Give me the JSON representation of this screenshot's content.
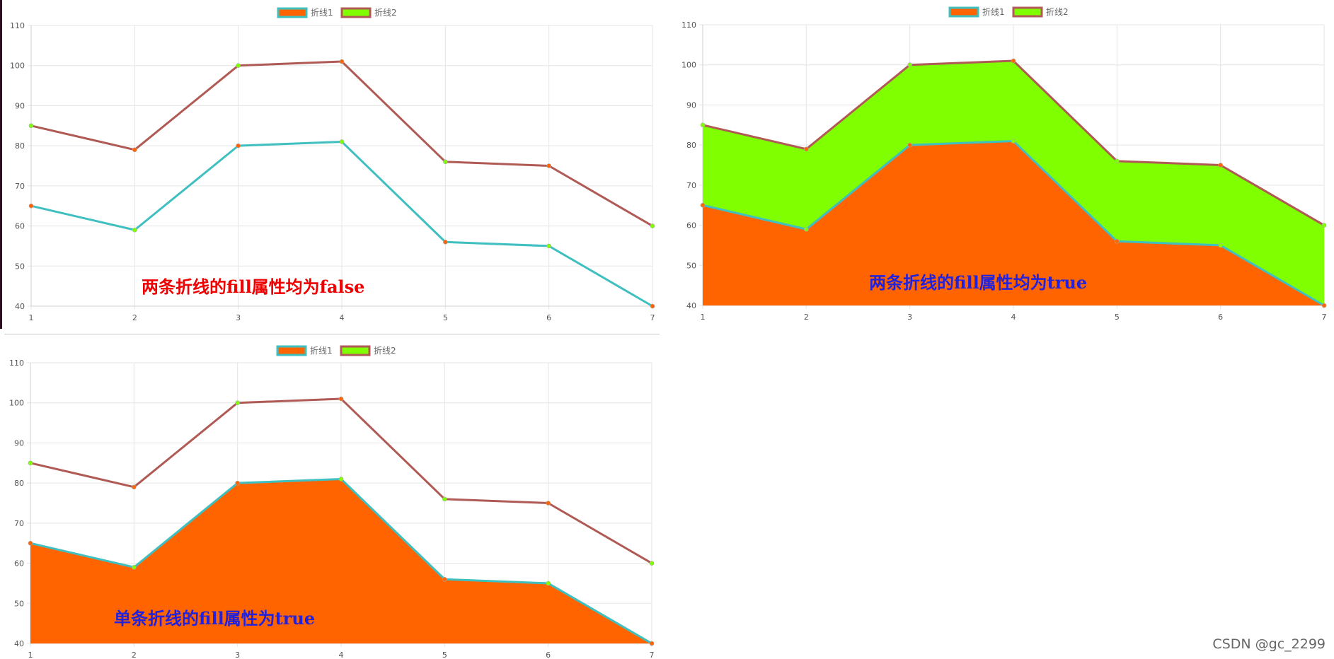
{
  "watermark": "CSDN @gc_2299",
  "colors": {
    "line1_border": "#3fbfc0",
    "line1_fill": "#ff6400",
    "line1_point": "#ff6400",
    "line2_border": "#b05a55",
    "line2_fill": "#7fff00",
    "line2_point": "#7fff00",
    "grid": "#e5e5e5",
    "annot_red": "#ee0000",
    "annot_blue": "#2222dd"
  },
  "chart_data": [
    {
      "type": "line",
      "categories": [
        "1",
        "2",
        "3",
        "4",
        "5",
        "6",
        "7"
      ],
      "series": [
        {
          "name": "折线1",
          "values": [
            65,
            59,
            80,
            81,
            56,
            55,
            40
          ],
          "fill": false
        },
        {
          "name": "折线2",
          "values": [
            85,
            79,
            100,
            101,
            76,
            75,
            60
          ],
          "fill": false
        }
      ],
      "ylim": [
        40,
        110
      ],
      "yticks": [
        40,
        50,
        60,
        70,
        80,
        90,
        100,
        110
      ],
      "legend": "top-center",
      "grid": true,
      "annotation": "两条折线的fill属性均为false"
    },
    {
      "type": "area",
      "categories": [
        "1",
        "2",
        "3",
        "4",
        "5",
        "6",
        "7"
      ],
      "series": [
        {
          "name": "折线1",
          "values": [
            65,
            59,
            80,
            81,
            56,
            55,
            40
          ],
          "fill": true
        },
        {
          "name": "折线2",
          "values": [
            85,
            79,
            100,
            101,
            76,
            75,
            60
          ],
          "fill": true
        }
      ],
      "ylim": [
        40,
        110
      ],
      "yticks": [
        40,
        50,
        60,
        70,
        80,
        90,
        100,
        110
      ],
      "legend": "top-center",
      "grid": true,
      "annotation": "两条折线的fill属性均为true"
    },
    {
      "type": "area",
      "categories": [
        "1",
        "2",
        "3",
        "4",
        "5",
        "6",
        "7"
      ],
      "series": [
        {
          "name": "折线1",
          "values": [
            65,
            59,
            80,
            81,
            56,
            55,
            40
          ],
          "fill": true
        },
        {
          "name": "折线2",
          "values": [
            85,
            79,
            100,
            101,
            76,
            75,
            60
          ],
          "fill": false
        }
      ],
      "ylim": [
        40,
        110
      ],
      "yticks": [
        40,
        50,
        60,
        70,
        80,
        90,
        100,
        110
      ],
      "legend": "top-center",
      "grid": true,
      "annotation": "单条折线的fill属性为true"
    }
  ]
}
